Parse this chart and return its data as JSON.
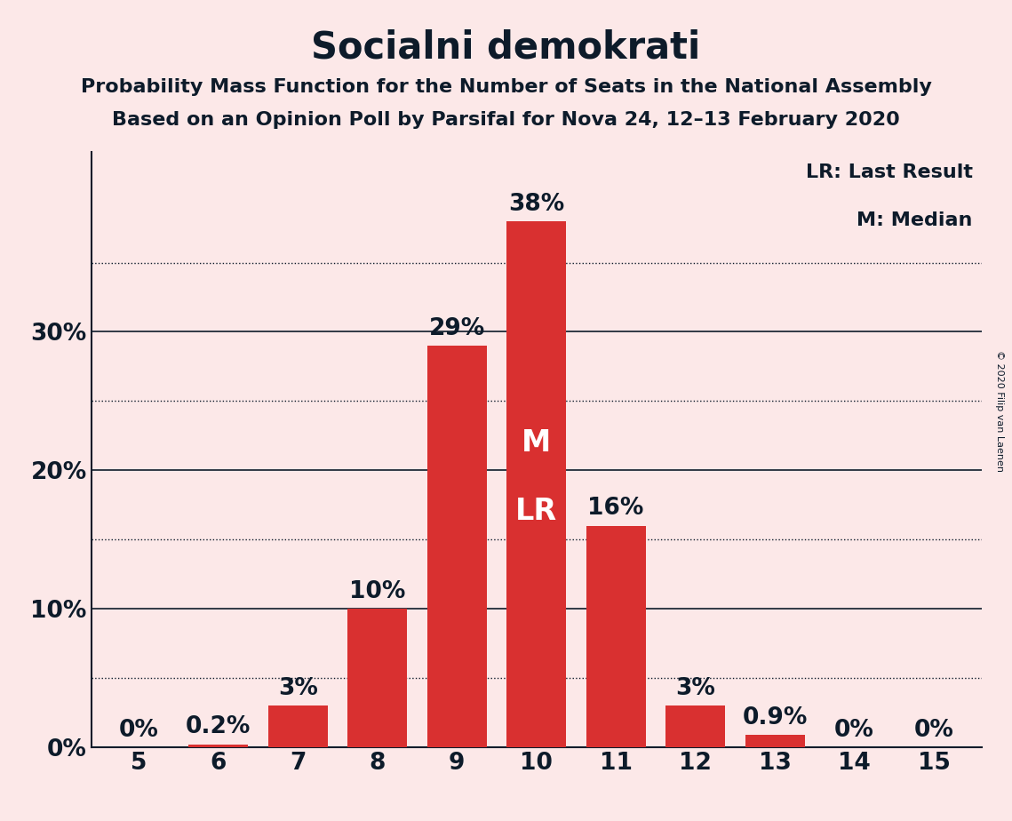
{
  "title": "Socialni demokrati",
  "subtitle1": "Probability Mass Function for the Number of Seats in the National Assembly",
  "subtitle2": "Based on an Opinion Poll by Parsifal for Nova 24, 12–13 February 2020",
  "copyright": "© 2020 Filip van Laenen",
  "categories": [
    5,
    6,
    7,
    8,
    9,
    10,
    11,
    12,
    13,
    14,
    15
  ],
  "values": [
    0.0,
    0.2,
    3.0,
    10.0,
    29.0,
    38.0,
    16.0,
    3.0,
    0.9,
    0.0,
    0.0
  ],
  "labels": [
    "0%",
    "0.2%",
    "3%",
    "10%",
    "29%",
    "38%",
    "16%",
    "3%",
    "0.9%",
    "0%",
    "0%"
  ],
  "bar_color": "#d93030",
  "background_color": "#fce8e8",
  "text_color": "#0d1b2a",
  "label_color_outside": "#0d1b2a",
  "label_color_inside": "#ffffff",
  "median_bar": 10,
  "lr_bar": 10,
  "median_label": "M",
  "lr_label": "LR",
  "legend_lr": "LR: Last Result",
  "legend_m": "M: Median",
  "solid_grid_lines": [
    10,
    20,
    30
  ],
  "dotted_grid_lines": [
    5,
    15,
    25,
    35
  ],
  "yticks": [
    0,
    10,
    20,
    30
  ],
  "ytick_labels": [
    "0%",
    "10%",
    "20%",
    "30%"
  ],
  "ylim": [
    0,
    43
  ],
  "title_fontsize": 30,
  "subtitle_fontsize": 16,
  "bar_label_fontsize": 19,
  "axis_label_fontsize": 19,
  "legend_fontsize": 16,
  "ml_fontsize": 24
}
